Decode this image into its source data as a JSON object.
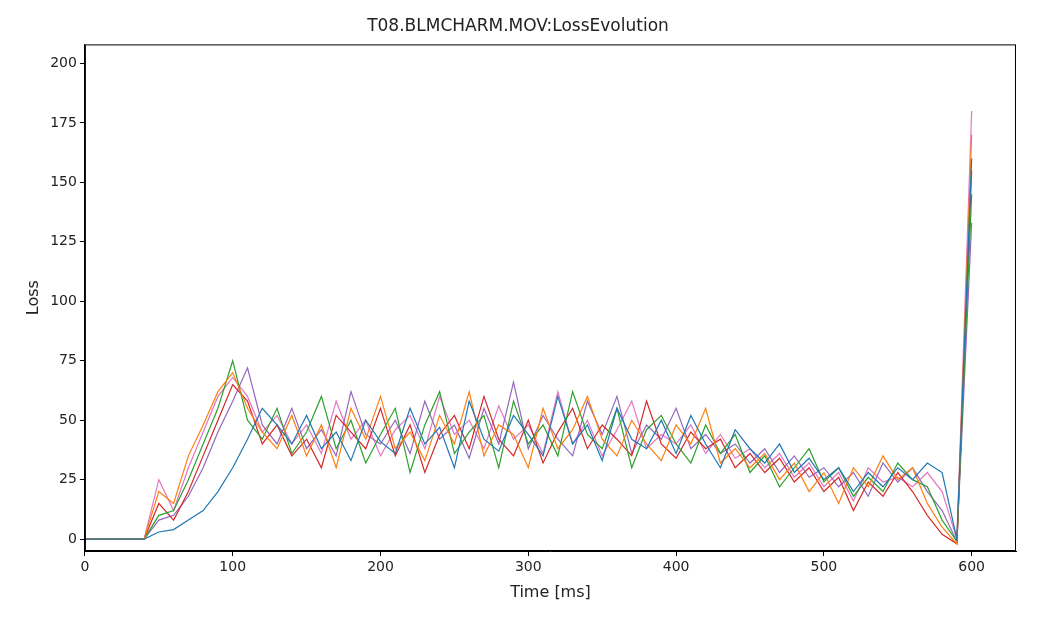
{
  "chart_data": {
    "type": "line",
    "title": "T08.BLMCHARM.MOV:LossEvolution",
    "x_label": "Time [ms]",
    "y_label": "Loss",
    "x": [
      0,
      10,
      20,
      30,
      40,
      50,
      60,
      70,
      80,
      90,
      100,
      110,
      120,
      130,
      140,
      150,
      160,
      170,
      180,
      190,
      200,
      210,
      220,
      230,
      240,
      250,
      260,
      270,
      280,
      290,
      300,
      310,
      320,
      330,
      340,
      350,
      360,
      370,
      380,
      390,
      400,
      410,
      420,
      430,
      440,
      450,
      460,
      470,
      480,
      490,
      500,
      510,
      520,
      530,
      540,
      550,
      560,
      570,
      580,
      590,
      600
    ],
    "xlim": [
      0,
      630
    ],
    "xticks": [
      0,
      100,
      200,
      300,
      400,
      500,
      600
    ],
    "ylim": [
      -5,
      208
    ],
    "yticks": [
      0,
      25,
      50,
      75,
      100,
      125,
      150,
      175,
      200
    ],
    "grid": false,
    "series": [
      {
        "color": "#1f77b4",
        "values": [
          0,
          0,
          0,
          0,
          0,
          3,
          4,
          8,
          12,
          20,
          30,
          42,
          55,
          48,
          40,
          52,
          38,
          45,
          33,
          50,
          41,
          36,
          55,
          40,
          47,
          30,
          58,
          42,
          37,
          52,
          44,
          35,
          60,
          40,
          48,
          33,
          55,
          42,
          38,
          50,
          36,
          52,
          40,
          30,
          46,
          38,
          32,
          40,
          28,
          34,
          25,
          30,
          20,
          28,
          22,
          30,
          25,
          32,
          28,
          0,
          160
        ]
      },
      {
        "color": "#ff7f0e",
        "values": [
          0,
          0,
          0,
          0,
          0,
          20,
          15,
          35,
          48,
          62,
          70,
          55,
          45,
          38,
          52,
          35,
          48,
          30,
          55,
          42,
          60,
          38,
          45,
          33,
          52,
          40,
          62,
          35,
          48,
          44,
          30,
          55,
          38,
          46,
          60,
          42,
          35,
          50,
          40,
          33,
          48,
          40,
          55,
          32,
          38,
          30,
          36,
          25,
          32,
          20,
          28,
          15,
          30,
          22,
          35,
          25,
          30,
          15,
          5,
          -2,
          170
        ]
      },
      {
        "color": "#2ca02c",
        "values": [
          0,
          0,
          0,
          0,
          0,
          10,
          12,
          25,
          40,
          55,
          75,
          50,
          42,
          55,
          36,
          45,
          60,
          38,
          50,
          32,
          44,
          55,
          28,
          48,
          62,
          36,
          45,
          52,
          30,
          58,
          40,
          48,
          35,
          62,
          44,
          38,
          55,
          30,
          46,
          52,
          40,
          32,
          48,
          36,
          44,
          28,
          35,
          22,
          30,
          38,
          24,
          30,
          18,
          26,
          20,
          32,
          25,
          22,
          8,
          -1,
          145
        ]
      },
      {
        "color": "#d62728",
        "values": [
          0,
          0,
          0,
          0,
          0,
          15,
          8,
          20,
          35,
          50,
          65,
          58,
          40,
          48,
          35,
          42,
          30,
          52,
          45,
          38,
          55,
          35,
          48,
          28,
          44,
          52,
          38,
          60,
          42,
          35,
          50,
          32,
          45,
          55,
          38,
          48,
          42,
          35,
          58,
          40,
          34,
          45,
          38,
          42,
          30,
          36,
          28,
          34,
          24,
          30,
          20,
          26,
          12,
          24,
          18,
          28,
          20,
          10,
          2,
          -2,
          155
        ]
      },
      {
        "color": "#9467bd",
        "values": [
          0,
          0,
          0,
          0,
          0,
          8,
          10,
          18,
          30,
          45,
          58,
          72,
          48,
          40,
          55,
          38,
          46,
          35,
          62,
          44,
          40,
          50,
          36,
          58,
          42,
          48,
          34,
          55,
          40,
          66,
          38,
          52,
          42,
          35,
          58,
          44,
          60,
          36,
          48,
          42,
          55,
          38,
          44,
          36,
          40,
          32,
          38,
          28,
          35,
          26,
          30,
          22,
          28,
          18,
          32,
          24,
          30,
          20,
          12,
          -1,
          133
        ]
      },
      {
        "color": "#e377c2",
        "values": [
          0,
          0,
          0,
          0,
          0,
          25,
          12,
          30,
          45,
          60,
          68,
          60,
          45,
          52,
          40,
          48,
          36,
          58,
          42,
          50,
          35,
          46,
          52,
          38,
          60,
          44,
          50,
          38,
          56,
          42,
          48,
          36,
          62,
          40,
          50,
          35,
          46,
          58,
          38,
          44,
          40,
          48,
          36,
          44,
          34,
          38,
          30,
          36,
          26,
          32,
          22,
          28,
          16,
          30,
          24,
          26,
          22,
          28,
          20,
          0,
          180
        ]
      }
    ]
  }
}
